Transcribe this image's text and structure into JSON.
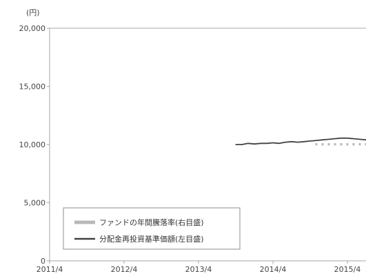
{
  "chart_data": {
    "type": "line",
    "y_unit": "(円)",
    "ylim": [
      0,
      20000
    ],
    "y_ticks": [
      0,
      5000,
      10000,
      15000,
      20000
    ],
    "y_tick_labels": [
      "0",
      "5,000",
      "10,000",
      "15,000",
      "20,000"
    ],
    "x_range": [
      "2011/4",
      "2015/7"
    ],
    "x_ticks": [
      "2011/4",
      "2012/4",
      "2013/4",
      "2014/4",
      "2015/4"
    ],
    "x_tick_labels": [
      "2011/4",
      "2012/4",
      "2013/4",
      "2014/4",
      "2015/4"
    ],
    "grid": false,
    "legend_position": "bottom-left",
    "series": [
      {
        "name": "ファンドの年間騰落率(右目盛)",
        "kind": "bar",
        "axis": "right",
        "color": "#b8b8b8",
        "dates": [
          "2014/11",
          "2014/12",
          "2015/1",
          "2015/2",
          "2015/3",
          "2015/4",
          "2015/5",
          "2015/6",
          "2015/7"
        ],
        "values": [
          1.5,
          1.5,
          1.5,
          1.5,
          1.5,
          1.5,
          1.5,
          1.5,
          1.5
        ]
      },
      {
        "name": "分配金再投資基準価額(左目盛)",
        "kind": "line",
        "axis": "left",
        "color": "#404040",
        "dates": [
          "2013/10",
          "2013/11",
          "2013/12",
          "2014/1",
          "2014/2",
          "2014/3",
          "2014/4",
          "2014/5",
          "2014/6",
          "2014/7",
          "2014/8",
          "2014/9",
          "2014/10",
          "2014/11",
          "2014/12",
          "2015/1",
          "2015/2",
          "2015/3",
          "2015/4",
          "2015/5",
          "2015/6",
          "2015/7"
        ],
        "values": [
          10000,
          10000,
          10100,
          10050,
          10100,
          10100,
          10150,
          10100,
          10200,
          10250,
          10200,
          10250,
          10300,
          10350,
          10400,
          10450,
          10500,
          10550,
          10550,
          10500,
          10450,
          10400
        ]
      }
    ]
  }
}
